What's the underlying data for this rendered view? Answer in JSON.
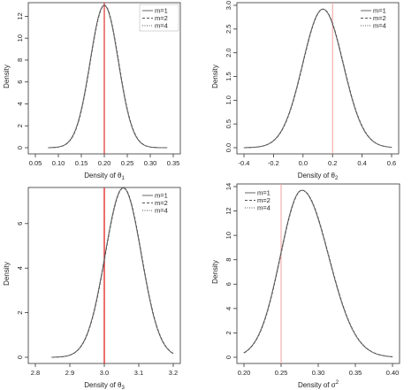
{
  "chart_data": [
    {
      "type": "line",
      "xlabel": "Density of θ",
      "xlabel_sub": "1",
      "ylabel": "Density",
      "xlim": [
        0.05,
        0.35
      ],
      "ylim": [
        0,
        13
      ],
      "xticks": [
        "0.05",
        "0.10",
        "0.15",
        "0.20",
        "0.25",
        "0.30",
        "0.35"
      ],
      "yticks": [
        "0",
        "2",
        "4",
        "6",
        "8",
        "10",
        "12"
      ],
      "true_value": 0.2,
      "curve": {
        "mean": 0.2,
        "sd": 0.0307,
        "peak": 13.0
      },
      "legend_position": "top-right",
      "series": [
        {
          "name": "m=1"
        },
        {
          "name": "m=2"
        },
        {
          "name": "m=4"
        }
      ]
    },
    {
      "type": "line",
      "xlabel": "Density of θ",
      "xlabel_sub": "2",
      "ylabel": "Density",
      "xlim": [
        -0.4,
        0.6
      ],
      "ylim": [
        0,
        3.0
      ],
      "xticks": [
        "-0.4",
        "-0.2",
        "0.0",
        "0.2",
        "0.4",
        "0.6"
      ],
      "yticks": [
        "0.0",
        "0.5",
        "1.0",
        "1.5",
        "2.0",
        "2.5",
        "3.0"
      ],
      "true_value": 0.2,
      "curve": {
        "mean": 0.135,
        "sd": 0.137,
        "peak": 2.92
      },
      "legend_position": "top-right",
      "series": [
        {
          "name": "m=1"
        },
        {
          "name": "m=2"
        },
        {
          "name": "m=4"
        }
      ]
    },
    {
      "type": "line",
      "xlabel": "Density of θ",
      "xlabel_sub": "3",
      "ylabel": "Density",
      "xlim": [
        2.8,
        3.2
      ],
      "ylim": [
        0,
        7.5
      ],
      "xticks": [
        "2.8",
        "2.9",
        "3.0",
        "3.1",
        "3.2"
      ],
      "yticks": [
        "0",
        "2",
        "4",
        "6"
      ],
      "true_value": 3.0,
      "curve": {
        "mean": 3.055,
        "sd": 0.0525,
        "peak": 7.6
      },
      "legend_position": "top-right",
      "series": [
        {
          "name": "m=1"
        },
        {
          "name": "m=2"
        },
        {
          "name": "m=4"
        }
      ]
    },
    {
      "type": "line",
      "xlabel": "Density of σ",
      "xlabel_sup": "2",
      "ylabel": "Density",
      "xlim": [
        0.2,
        0.4
      ],
      "ylim": [
        0,
        14
      ],
      "xticks": [
        "0.20",
        "0.25",
        "0.30",
        "0.35",
        "0.40"
      ],
      "yticks": [
        "0",
        "2",
        "4",
        "6",
        "8",
        "10",
        "12",
        "14"
      ],
      "true_value": 0.25,
      "curve": {
        "mean": 0.278,
        "sd": 0.029,
        "sd_right": 0.036,
        "peak": 13.7
      },
      "legend_position": "top-left",
      "series": [
        {
          "name": "m=1"
        },
        {
          "name": "m=2"
        },
        {
          "name": "m=4"
        }
      ]
    }
  ],
  "colors": {
    "curve": "#555555",
    "true_line": "#e03030",
    "true_line_light": "#f2a0a0",
    "axis": "#333333"
  }
}
